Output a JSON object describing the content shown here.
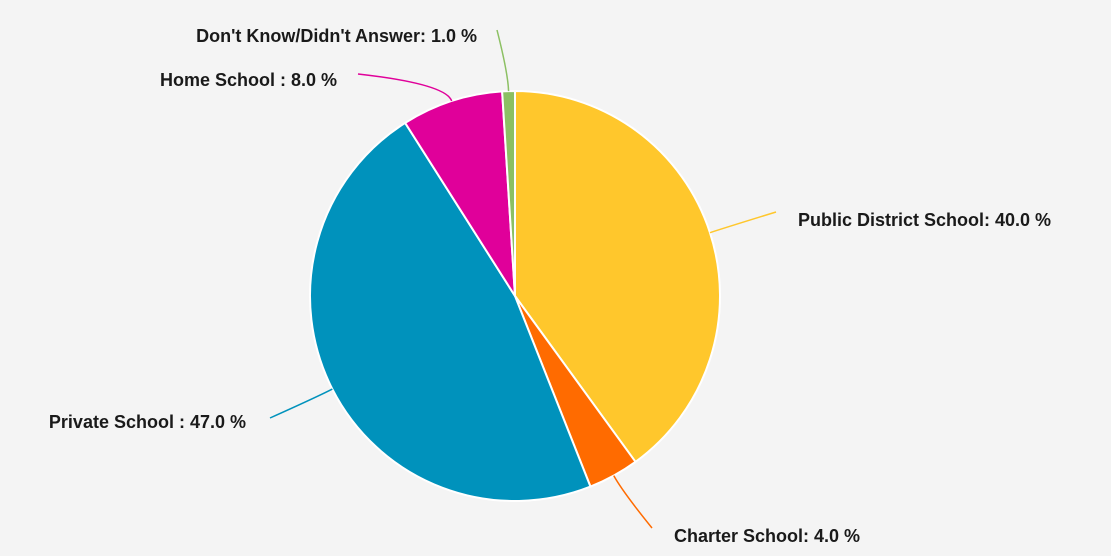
{
  "chart_data": {
    "type": "pie",
    "title": "",
    "slices": [
      {
        "label": "Public District School",
        "value": 40.0,
        "display": "Public District School: 40.0 %",
        "color": "#FFC72C"
      },
      {
        "label": "Charter School",
        "value": 4.0,
        "display": "Charter School: 4.0 %",
        "color": "#FF6B00"
      },
      {
        "label": "Private School",
        "value": 47.0,
        "display": "Private School : 47.0 %",
        "color": "#0092BC"
      },
      {
        "label": "Home School",
        "value": 8.0,
        "display": "Home School : 8.0 %",
        "color": "#E0009A"
      },
      {
        "label": "Don't Know/Didn't Answer",
        "value": 1.0,
        "display": "Don't Know/Didn't Answer: 1.0 %",
        "color": "#8CC063"
      }
    ],
    "start_angle": "12 o'clock",
    "direction": "clockwise",
    "legend": "none",
    "data_labels": "outside with leader lines"
  }
}
